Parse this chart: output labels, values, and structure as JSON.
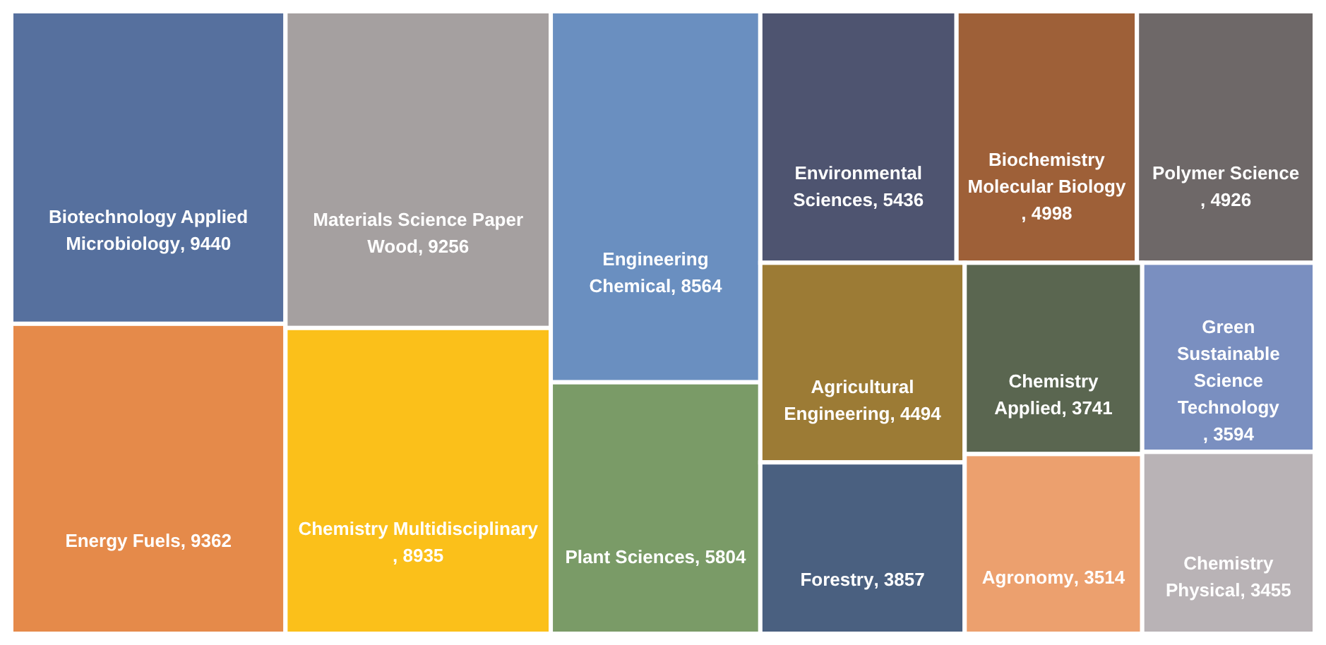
{
  "chart_data": {
    "type": "other",
    "categories": [
      "Biotechnology Applied Microbiology",
      "Energy Fuels",
      "Materials Science Paper Wood",
      "Chemistry Multidisciplinary",
      "Engineering Chemical",
      "Plant Sciences",
      "Environmental Sciences",
      "Biochemistry Molecular Biology",
      "Polymer Science",
      "Agricultural Engineering",
      "Forestry",
      "Chemistry Applied",
      "Agronomy",
      "Green Sustainable Science Technology",
      "Chemistry Physical"
    ],
    "values": [
      9440,
      9362,
      9256,
      8935,
      8564,
      5804,
      5436,
      4998,
      4926,
      4494,
      3857,
      3741,
      3514,
      3594,
      3455
    ],
    "value_labels": [
      ", 9440",
      ", 9362",
      ", 9256",
      ", 8935",
      ", 8564",
      ", 5804",
      ", 5436",
      ", 4998",
      ", 4926",
      ", 4494",
      ", 3857",
      ", 3741",
      ", 3514",
      ", 3594",
      ", 3455"
    ],
    "colors": [
      "#56709e",
      "#e58a4a",
      "#a5a0a0",
      "#fbc01a",
      "#6a8fc0",
      "#7a9b67",
      "#4e5470",
      "#9e6038",
      "#6e6868",
      "#9c7b35",
      "#4a6080",
      "#5a6650",
      "#eca06e",
      "#7a8fc0",
      "#b9b3b6"
    ]
  }
}
